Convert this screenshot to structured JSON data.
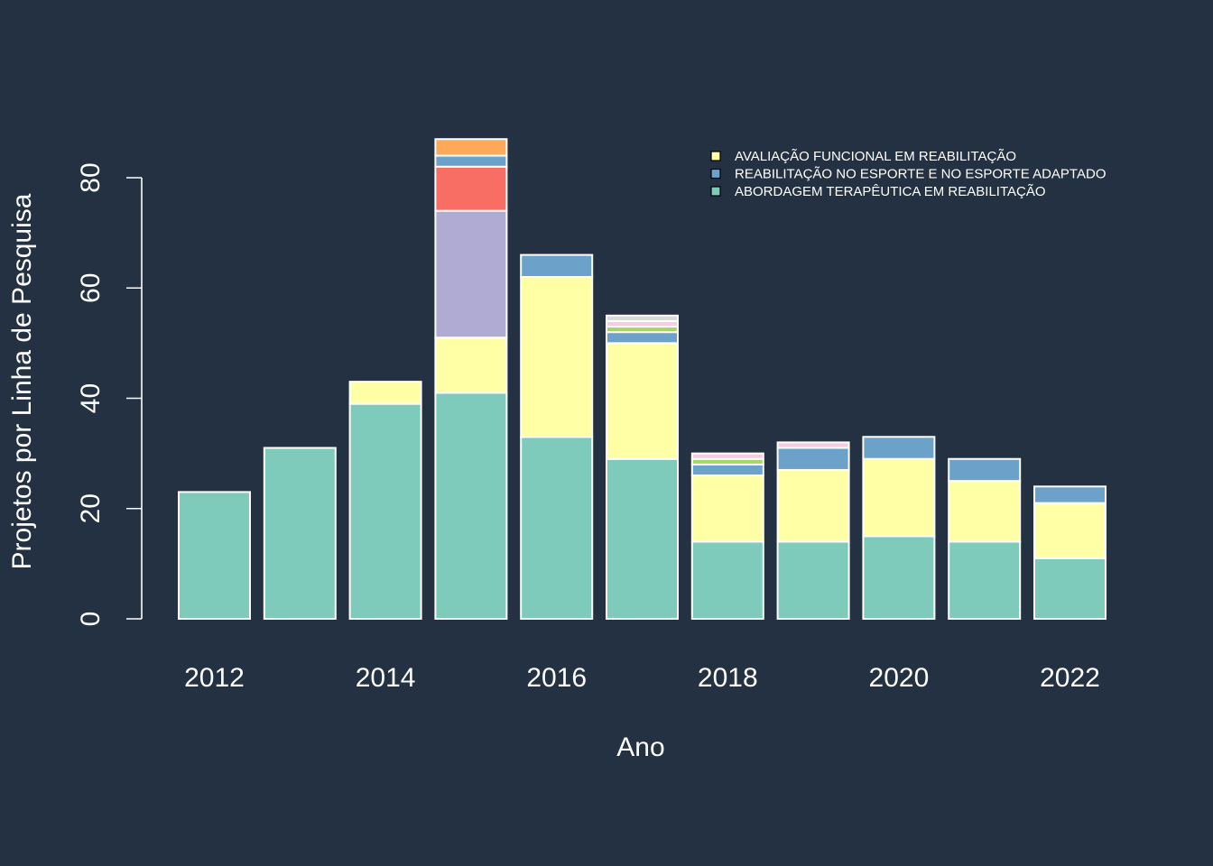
{
  "chart_data": {
    "type": "bar",
    "stacked": true,
    "xlabel": "Ano",
    "ylabel": "Projetos por Linha de Pesquisa",
    "ylim": [
      0,
      87
    ],
    "yticks": [
      0,
      20,
      40,
      60,
      80
    ],
    "x_tick_labels": [
      "2012",
      "2014",
      "2016",
      "2018",
      "2020",
      "2022"
    ],
    "categories": [
      "2012",
      "2013",
      "2014",
      "2015",
      "2016",
      "2017",
      "2018",
      "2019",
      "2020",
      "2021",
      "2022"
    ],
    "legend_position": "top-right",
    "series": [
      {
        "name": "ABORDAGEM TERAPÊUTICA EM REABILITAÇÃO",
        "color": "#7fcbbb",
        "values": [
          23,
          31,
          39,
          41,
          33,
          29,
          14,
          14,
          15,
          14,
          11
        ]
      },
      {
        "name": "AVALIAÇÃO FUNCIONAL EM REABILITAÇÃO",
        "color": "#ffffa5",
        "values": [
          0,
          0,
          4,
          10,
          29,
          21,
          12,
          13,
          14,
          11,
          10
        ]
      },
      {
        "color": "#b0abd2",
        "values": [
          0,
          0,
          0,
          23,
          0,
          0,
          0,
          0,
          0,
          0,
          0
        ]
      },
      {
        "color": "#f96e64",
        "values": [
          0,
          0,
          0,
          8,
          0,
          0,
          0,
          0,
          0,
          0,
          0
        ]
      },
      {
        "name": "REABILITAÇÃO NO ESPORTE E NO ESPORTE ADAPTADO",
        "color": "#6ca1c9",
        "values": [
          0,
          0,
          0,
          2,
          4,
          2,
          2,
          4,
          4,
          4,
          3
        ]
      },
      {
        "color": "#fda95a",
        "values": [
          0,
          0,
          0,
          3,
          0,
          0,
          0,
          0,
          0,
          0,
          0
        ]
      },
      {
        "color": "#a6d565",
        "values": [
          0,
          0,
          0,
          0,
          0,
          1,
          1,
          0,
          0,
          0,
          0
        ]
      },
      {
        "color": "#f9cbe3",
        "values": [
          0,
          0,
          0,
          0,
          0,
          1,
          1,
          1,
          0,
          0,
          0
        ]
      },
      {
        "color": "#d9d9d9",
        "values": [
          0,
          0,
          0,
          0,
          0,
          1,
          0,
          0,
          0,
          0,
          0
        ]
      }
    ],
    "legend": [
      {
        "label": "AVALIAÇÃO FUNCIONAL EM REABILITAÇÃO",
        "color": "#ffffa5"
      },
      {
        "label": "REABILITAÇÃO NO ESPORTE E NO ESPORTE ADAPTADO",
        "color": "#6ca1c9"
      },
      {
        "label": "ABORDAGEM TERAPÊUTICA EM REABILITAÇÃO",
        "color": "#7fcbbb"
      }
    ]
  },
  "colors": {
    "background": "#233142",
    "foreground": "#ffffff"
  }
}
